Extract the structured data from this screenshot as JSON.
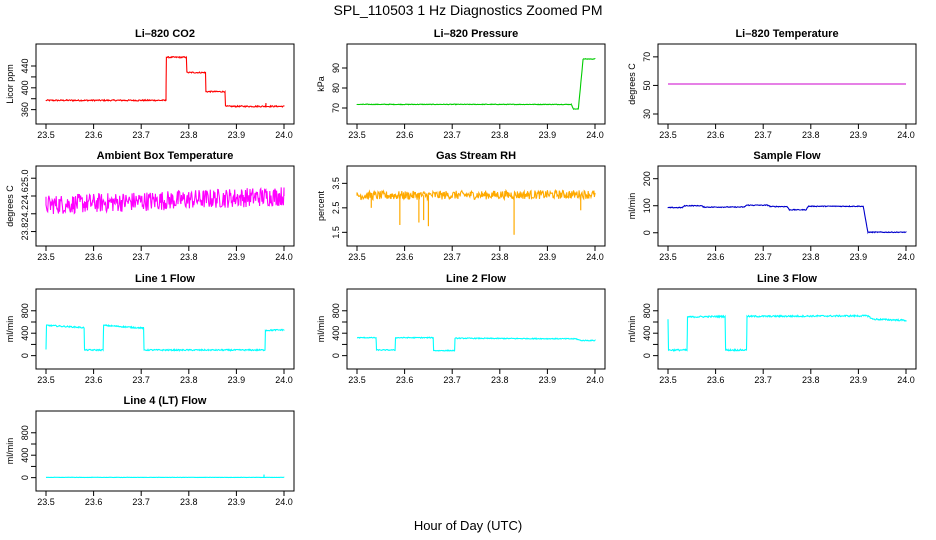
{
  "title": "SPL_110503  1 Hz Diagnostics Zoomed PM",
  "xlabel": "Hour of Day (UTC)",
  "chart_data": [
    {
      "type": "line",
      "title": "Li–820 CO2",
      "ylabel": "Licor ppm",
      "xlim": [
        23.5,
        24.0
      ],
      "ylim": [
        352,
        462
      ],
      "xticks": [
        "23.5",
        "23.6",
        "23.7",
        "23.8",
        "23.9",
        "24.0"
      ],
      "yticks": [
        360,
        380,
        400,
        420,
        440
      ],
      "ytick_labels": [
        "360",
        "",
        "400",
        "",
        "440"
      ],
      "color": "#ff0000",
      "noise": 1.2,
      "spikes": [
        [
          23.962,
          372
        ]
      ],
      "segments": [
        [
          23.5,
          377
        ],
        [
          23.752,
          377
        ],
        [
          23.753,
          456
        ],
        [
          23.795,
          456
        ],
        [
          23.796,
          428
        ],
        [
          23.835,
          428
        ],
        [
          23.836,
          393
        ],
        [
          23.876,
          393
        ],
        [
          23.877,
          366
        ],
        [
          24.0,
          366
        ]
      ]
    },
    {
      "type": "line",
      "title": "Li–820 Pressure",
      "ylabel": "kPa",
      "xlim": [
        23.5,
        24.0
      ],
      "ylim": [
        67,
        97
      ],
      "xticks": [
        "23.5",
        "23.6",
        "23.7",
        "23.8",
        "23.9",
        "24.0"
      ],
      "yticks": [
        70,
        80,
        90
      ],
      "ytick_labels": [
        "70",
        "80",
        "90"
      ],
      "color": "#00cc00",
      "noise": 0.15,
      "spikes": [],
      "segments": [
        [
          23.5,
          71.8
        ],
        [
          23.95,
          71.8
        ],
        [
          23.955,
          69.5
        ],
        [
          23.965,
          69.5
        ],
        [
          23.975,
          94.5
        ],
        [
          24.0,
          94.5
        ]
      ]
    },
    {
      "type": "line",
      "title": "Li–820 Temperature",
      "ylabel": "degrees C",
      "xlim": [
        23.5,
        24.0
      ],
      "ylim": [
        30,
        72
      ],
      "xticks": [
        "23.5",
        "23.6",
        "23.7",
        "23.8",
        "23.9",
        "24.0"
      ],
      "yticks": [
        30,
        50,
        70
      ],
      "ytick_labels": [
        "30",
        "50",
        "70"
      ],
      "color": "#cc00cc",
      "noise": 0,
      "spikes": [],
      "segments": [
        [
          23.5,
          51
        ],
        [
          24.0,
          51
        ]
      ]
    },
    {
      "type": "line",
      "title": "Ambient Box Temperature",
      "ylabel": "degrees C",
      "xlim": [
        23.5,
        24.0
      ],
      "ylim": [
        23.7,
        25.05
      ],
      "xticks": [
        "23.5",
        "23.6",
        "23.7",
        "23.8",
        "23.9",
        "24.0"
      ],
      "yticks": [
        23.8,
        24.2,
        24.6,
        25.0
      ],
      "ytick_labels": [
        "23.8",
        "24.2",
        "24.6",
        "25.0"
      ],
      "color": "#ff00ff",
      "noise": 0.22,
      "spikes": [],
      "segments": [
        [
          23.5,
          24.4
        ],
        [
          24.0,
          24.6
        ]
      ]
    },
    {
      "type": "line",
      "title": "Gas Stream RH",
      "ylabel": "percent",
      "xlim": [
        23.5,
        24.0
      ],
      "ylim": [
        1.35,
        3.8
      ],
      "xticks": [
        "23.5",
        "23.6",
        "23.7",
        "23.8",
        "23.9",
        "24.0"
      ],
      "yticks": [
        1.5,
        2.5,
        3.5
      ],
      "ytick_labels": [
        "1.5",
        "2.5",
        "3.5"
      ],
      "color": "#ffaa00",
      "noise": 0.18,
      "spikes": [
        [
          23.53,
          2.5
        ],
        [
          23.59,
          1.8
        ],
        [
          23.63,
          1.9
        ],
        [
          23.64,
          2.0
        ],
        [
          23.65,
          1.75
        ],
        [
          23.83,
          1.4
        ],
        [
          23.97,
          2.4
        ]
      ],
      "segments": [
        [
          23.5,
          3.0
        ],
        [
          24.0,
          3.05
        ]
      ]
    },
    {
      "type": "line",
      "title": "Sample Flow",
      "ylabel": "ml/min",
      "xlim": [
        23.5,
        24.0
      ],
      "ylim": [
        -12,
        210
      ],
      "xticks": [
        "23.5",
        "23.6",
        "23.7",
        "23.8",
        "23.9",
        "24.0"
      ],
      "yticks": [
        0,
        100,
        200
      ],
      "ytick_labels": [
        "0",
        "100",
        "200"
      ],
      "color": "#0000cc",
      "noise": 1.5,
      "spikes": [],
      "segments": [
        [
          23.5,
          93
        ],
        [
          23.53,
          93
        ],
        [
          23.535,
          100
        ],
        [
          23.57,
          100
        ],
        [
          23.575,
          95
        ],
        [
          23.66,
          95
        ],
        [
          23.665,
          102
        ],
        [
          23.71,
          102
        ],
        [
          23.715,
          97
        ],
        [
          23.75,
          97
        ],
        [
          23.755,
          85
        ],
        [
          23.79,
          85
        ],
        [
          23.795,
          98
        ],
        [
          23.91,
          98
        ],
        [
          23.92,
          2
        ],
        [
          24.0,
          2
        ]
      ]
    },
    {
      "type": "line",
      "title": "Line 1 Flow",
      "ylabel": "ml/min",
      "xlim": [
        23.5,
        24.0
      ],
      "ylim": [
        -60,
        1010
      ],
      "xticks": [
        "23.5",
        "23.6",
        "23.7",
        "23.8",
        "23.9",
        "24.0"
      ],
      "yticks": [
        0,
        200,
        400,
        600,
        800
      ],
      "ytick_labels": [
        "0",
        "",
        "400",
        "",
        "800"
      ],
      "color": "#00ffff",
      "noise": 12,
      "spikes": [],
      "segments": [
        [
          23.5,
          110
        ],
        [
          23.501,
          540
        ],
        [
          23.58,
          500
        ],
        [
          23.581,
          100
        ],
        [
          23.62,
          100
        ],
        [
          23.621,
          540
        ],
        [
          23.705,
          490
        ],
        [
          23.706,
          100
        ],
        [
          23.96,
          100
        ],
        [
          23.961,
          450
        ],
        [
          24.0,
          460
        ]
      ]
    },
    {
      "type": "line",
      "title": "Line 2 Flow",
      "ylabel": "ml/min",
      "xlim": [
        23.5,
        24.0
      ],
      "ylim": [
        -60,
        1010
      ],
      "xticks": [
        "23.5",
        "23.6",
        "23.7",
        "23.8",
        "23.9",
        "24.0"
      ],
      "yticks": [
        0,
        200,
        400,
        600,
        800
      ],
      "ytick_labels": [
        "0",
        "",
        "400",
        "",
        "800"
      ],
      "color": "#00ffff",
      "noise": 8,
      "spikes": [],
      "segments": [
        [
          23.5,
          320
        ],
        [
          23.54,
          320
        ],
        [
          23.541,
          100
        ],
        [
          23.58,
          100
        ],
        [
          23.581,
          320
        ],
        [
          23.66,
          320
        ],
        [
          23.661,
          90
        ],
        [
          23.705,
          90
        ],
        [
          23.706,
          310
        ],
        [
          23.96,
          300
        ],
        [
          23.97,
          270
        ],
        [
          24.0,
          270
        ]
      ]
    },
    {
      "type": "line",
      "title": "Line 3 Flow",
      "ylabel": "ml/min",
      "xlim": [
        23.5,
        24.0
      ],
      "ylim": [
        -60,
        1010
      ],
      "xticks": [
        "23.5",
        "23.6",
        "23.7",
        "23.8",
        "23.9",
        "24.0"
      ],
      "yticks": [
        0,
        200,
        400,
        600,
        800
      ],
      "ytick_labels": [
        "0",
        "",
        "400",
        "",
        "800"
      ],
      "color": "#00ffff",
      "noise": 14,
      "spikes": [],
      "segments": [
        [
          23.5,
          650
        ],
        [
          23.501,
          100
        ],
        [
          23.54,
          100
        ],
        [
          23.541,
          690
        ],
        [
          23.62,
          700
        ],
        [
          23.621,
          100
        ],
        [
          23.665,
          100
        ],
        [
          23.666,
          700
        ],
        [
          23.92,
          710
        ],
        [
          23.93,
          650
        ],
        [
          24.0,
          630
        ]
      ]
    },
    {
      "type": "line",
      "title": "Line 4 (LT) Flow",
      "ylabel": "ml/min",
      "xlim": [
        23.5,
        24.0
      ],
      "ylim": [
        -60,
        1010
      ],
      "xticks": [
        "23.5",
        "23.6",
        "23.7",
        "23.8",
        "23.9",
        "24.0"
      ],
      "yticks": [
        0,
        200,
        400,
        600,
        800
      ],
      "ytick_labels": [
        "0",
        "",
        "400",
        "",
        "800"
      ],
      "color": "#00ffff",
      "noise": 2,
      "spikes": [
        [
          23.958,
          55
        ]
      ],
      "segments": [
        [
          23.5,
          5
        ],
        [
          24.0,
          5
        ]
      ]
    }
  ]
}
